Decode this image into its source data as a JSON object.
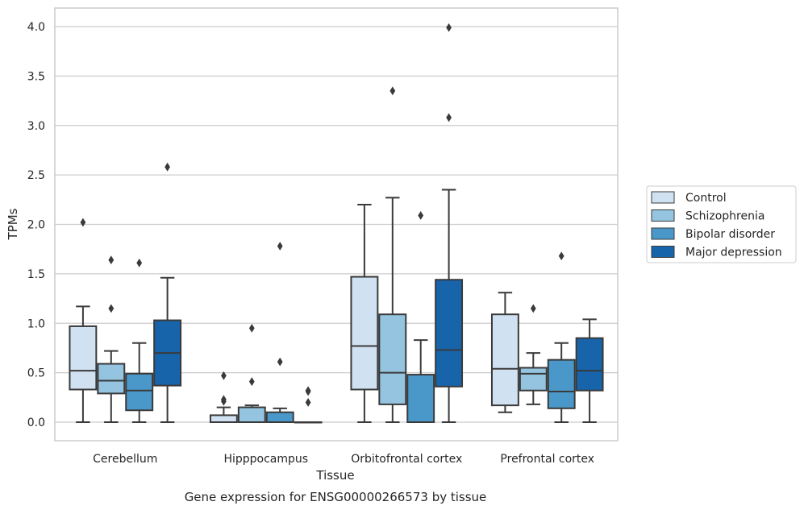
{
  "chart_data": {
    "type": "boxplot",
    "xlabel": "Tissue",
    "ylabel": "TPMs",
    "caption": "Gene expression for ENSG00000266573 by tissue",
    "ylim": [
      -0.19,
      4.2
    ],
    "yticks": [
      "0.0",
      "0.5",
      "1.0",
      "1.5",
      "2.0",
      "2.5",
      "3.0",
      "3.5",
      "4.0"
    ],
    "grid": "horizontal",
    "legend_position": "right",
    "categories": [
      "Cerebellum",
      "Hipppocampus",
      "Orbitofrontal cortex",
      "Prefrontal cortex"
    ],
    "series": [
      {
        "name": "Control",
        "color": "#d0e1f2",
        "boxes": [
          {
            "whislo": 0.0,
            "q1": 0.33,
            "med": 0.52,
            "q3": 0.97,
            "whishi": 1.17,
            "fliers": [
              2.02
            ]
          },
          {
            "whislo": 0.0,
            "q1": 0.0,
            "med": 0.0,
            "q3": 0.07,
            "whishi": 0.15,
            "fliers": [
              0.21,
              0.23,
              0.47
            ]
          },
          {
            "whislo": 0.0,
            "q1": 0.33,
            "med": 0.77,
            "q3": 1.47,
            "whishi": 2.2,
            "fliers": []
          },
          {
            "whislo": 0.1,
            "q1": 0.17,
            "med": 0.54,
            "q3": 1.09,
            "whishi": 1.31,
            "fliers": []
          }
        ]
      },
      {
        "name": "Schizophrenia",
        "color": "#94c4df",
        "boxes": [
          {
            "whislo": 0.0,
            "q1": 0.29,
            "med": 0.42,
            "q3": 0.59,
            "whishi": 0.72,
            "fliers": [
              1.15,
              1.64
            ]
          },
          {
            "whislo": 0.0,
            "q1": 0.0,
            "med": 0.0,
            "q3": 0.15,
            "whishi": 0.17,
            "fliers": [
              0.41,
              0.95
            ]
          },
          {
            "whislo": 0.0,
            "q1": 0.18,
            "med": 0.5,
            "q3": 1.09,
            "whishi": 2.27,
            "fliers": [
              3.35
            ]
          },
          {
            "whislo": 0.18,
            "q1": 0.32,
            "med": 0.49,
            "q3": 0.55,
            "whishi": 0.7,
            "fliers": [
              1.15
            ]
          }
        ]
      },
      {
        "name": "Bipolar disorder",
        "color": "#4a98c9",
        "boxes": [
          {
            "whislo": 0.0,
            "q1": 0.12,
            "med": 0.32,
            "q3": 0.49,
            "whishi": 0.8,
            "fliers": [
              1.61
            ]
          },
          {
            "whislo": 0.0,
            "q1": 0.0,
            "med": 0.0,
            "q3": 0.1,
            "whishi": 0.14,
            "fliers": [
              0.61,
              1.78
            ]
          },
          {
            "whislo": 0.0,
            "q1": 0.0,
            "med": 0.0,
            "q3": 0.48,
            "whishi": 0.83,
            "fliers": [
              2.09
            ]
          },
          {
            "whislo": 0.0,
            "q1": 0.14,
            "med": 0.31,
            "q3": 0.63,
            "whishi": 0.8,
            "fliers": [
              1.68
            ]
          }
        ]
      },
      {
        "name": "Major depression",
        "color": "#1764ab",
        "boxes": [
          {
            "whislo": 0.0,
            "q1": 0.37,
            "med": 0.7,
            "q3": 1.03,
            "whishi": 1.46,
            "fliers": [
              2.58
            ]
          },
          {
            "whislo": 0.0,
            "q1": 0.0,
            "med": 0.0,
            "q3": 0.0,
            "whishi": 0.0,
            "fliers": [
              0.2,
              0.31,
              0.32
            ]
          },
          {
            "whislo": 0.0,
            "q1": 0.36,
            "med": 0.73,
            "q3": 1.44,
            "whishi": 2.35,
            "fliers": [
              3.08,
              3.99
            ]
          },
          {
            "whislo": 0.0,
            "q1": 0.32,
            "med": 0.52,
            "q3": 0.85,
            "whishi": 1.04,
            "fliers": []
          }
        ]
      }
    ],
    "style": {
      "edge_color": "#3a3a3a",
      "grid_color": "#cccccc",
      "frame_color": "#cccccc"
    }
  }
}
